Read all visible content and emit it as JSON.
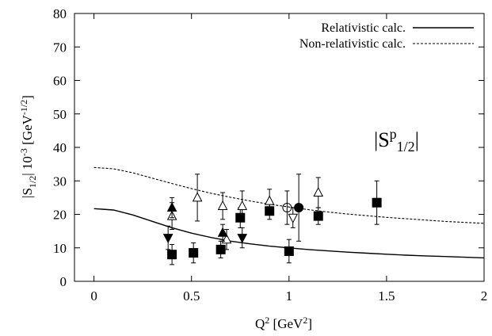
{
  "chart_data": {
    "type": "scatter",
    "xlabel": "Q² [GeV²]",
    "ylabel": "|S₁/₂| 10⁻³ [GeV^-1/2]",
    "annotation": "|Sᵖ₁/₂|",
    "xlim": [
      -0.1,
      2
    ],
    "ylim": [
      0,
      80
    ],
    "x_ticks": [
      0,
      0.5,
      1,
      1.5,
      2
    ],
    "x_tick_labels": [
      "0",
      "0.5",
      "1",
      "1.5",
      "2"
    ],
    "y_ticks": [
      0,
      10,
      20,
      30,
      40,
      50,
      60,
      70,
      80
    ],
    "y_tick_labels": [
      "0",
      "10",
      "20",
      "30",
      "40",
      "50",
      "60",
      "70",
      "80"
    ],
    "grid": false,
    "legend_position": "top-right",
    "series": [
      {
        "name": "Relativistic calc.",
        "kind": "line",
        "style": "solid",
        "x": [
          0,
          0.1,
          0.2,
          0.3,
          0.4,
          0.5,
          0.6,
          0.7,
          0.8,
          0.9,
          1.0,
          1.1,
          1.2,
          1.3,
          1.4,
          1.5,
          1.6,
          1.7,
          1.8,
          1.9,
          2.0
        ],
        "y": [
          21.7,
          21.3,
          19.8,
          17.9,
          16.0,
          14.4,
          13.1,
          12.0,
          11.2,
          10.5,
          10.0,
          9.5,
          9.1,
          8.7,
          8.4,
          8.1,
          7.8,
          7.6,
          7.4,
          7.2,
          7.0
        ]
      },
      {
        "name": "Non-relativistic calc.",
        "kind": "line",
        "style": "dashed",
        "x": [
          0,
          0.1,
          0.2,
          0.3,
          0.4,
          0.5,
          0.6,
          0.7,
          0.8,
          0.9,
          1.0,
          1.1,
          1.2,
          1.3,
          1.4,
          1.5,
          1.6,
          1.7,
          1.8,
          1.9,
          2.0
        ],
        "y": [
          34.0,
          33.6,
          32.4,
          30.8,
          29.2,
          27.7,
          26.3,
          25.1,
          24.0,
          23.0,
          22.2,
          21.4,
          20.7,
          20.1,
          19.6,
          19.1,
          18.7,
          18.3,
          17.9,
          17.6,
          17.3
        ]
      },
      {
        "marker": "filled-square",
        "points": [
          {
            "x": 0.4,
            "y": 8,
            "err": 3
          },
          {
            "x": 0.51,
            "y": 8.5,
            "err": 3
          },
          {
            "x": 0.65,
            "y": 9.5,
            "err": 2.5
          },
          {
            "x": 0.75,
            "y": 19,
            "err": 3
          },
          {
            "x": 0.9,
            "y": 21,
            "err": 2.5
          },
          {
            "x": 1.0,
            "y": 9,
            "err": 3.5
          },
          {
            "x": 1.15,
            "y": 19.5,
            "err": 2.5
          },
          {
            "x": 1.45,
            "y": 23.5,
            "err": 6.5
          }
        ]
      },
      {
        "marker": "open-triangle-up",
        "points": [
          {
            "x": 0.4,
            "y": 19.5,
            "err": 4
          },
          {
            "x": 0.53,
            "y": 25,
            "err": 7
          },
          {
            "x": 0.66,
            "y": 22.5,
            "err": 4
          },
          {
            "x": 0.68,
            "y": 12.5,
            "err": 3
          },
          {
            "x": 0.76,
            "y": 22.5,
            "err": 4.5
          },
          {
            "x": 0.9,
            "y": 24,
            "err": 3.5
          },
          {
            "x": 1.15,
            "y": 26.5,
            "err": 4.5
          }
        ]
      },
      {
        "marker": "filled-triangle-up",
        "points": [
          {
            "x": 0.4,
            "y": 22,
            "err": 3
          },
          {
            "x": 0.66,
            "y": 14.5,
            "err": 2.5
          }
        ]
      },
      {
        "marker": "filled-triangle-down",
        "points": [
          {
            "x": 0.38,
            "y": 13,
            "err": 3.5
          },
          {
            "x": 0.76,
            "y": 13,
            "err": 3
          }
        ]
      },
      {
        "marker": "open-triangle-down",
        "points": [
          {
            "x": 1.02,
            "y": 19,
            "err": 3
          }
        ]
      },
      {
        "marker": "open-circle",
        "points": [
          {
            "x": 0.99,
            "y": 22,
            "err": 5
          }
        ]
      },
      {
        "marker": "filled-circle",
        "points": [
          {
            "x": 1.05,
            "y": 22,
            "err": 10
          }
        ]
      }
    ]
  }
}
